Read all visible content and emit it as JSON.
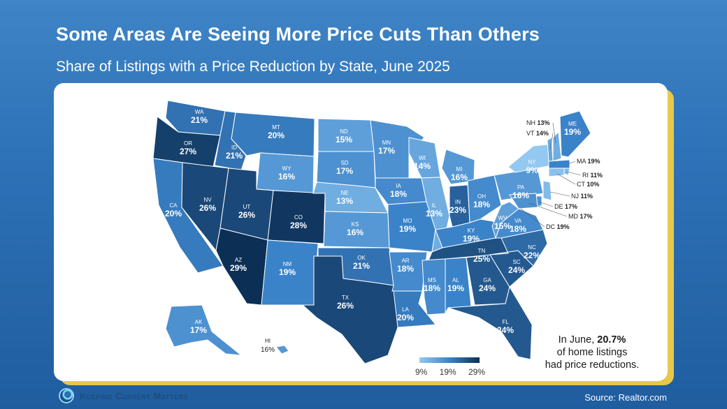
{
  "header": {
    "title": "Some Areas Are Seeing More Price Cuts Than Others",
    "subtitle": "Share of Listings with a Price Reduction by State, June 2025"
  },
  "colors": {
    "scale_low": "#93c9f1",
    "scale_mid": "#3b83c9",
    "scale_high": "#0c2f55",
    "card_shadow": "#e7c84a"
  },
  "states": [
    {
      "abbr": "WA",
      "value": "21%"
    },
    {
      "abbr": "OR",
      "value": "27%"
    },
    {
      "abbr": "CA",
      "value": "20%"
    },
    {
      "abbr": "ID",
      "value": "21%"
    },
    {
      "abbr": "NV",
      "value": "26%"
    },
    {
      "abbr": "MT",
      "value": "20%"
    },
    {
      "abbr": "WY",
      "value": "16%"
    },
    {
      "abbr": "UT",
      "value": "26%"
    },
    {
      "abbr": "CO",
      "value": "28%"
    },
    {
      "abbr": "AZ",
      "value": "29%"
    },
    {
      "abbr": "NM",
      "value": "19%"
    },
    {
      "abbr": "ND",
      "value": "15%"
    },
    {
      "abbr": "SD",
      "value": "17%"
    },
    {
      "abbr": "NE",
      "value": "13%"
    },
    {
      "abbr": "KS",
      "value": "16%"
    },
    {
      "abbr": "OK",
      "value": "21%"
    },
    {
      "abbr": "TX",
      "value": "26%"
    },
    {
      "abbr": "MN",
      "value": "17%"
    },
    {
      "abbr": "IA",
      "value": "18%"
    },
    {
      "abbr": "MO",
      "value": "19%"
    },
    {
      "abbr": "AR",
      "value": "18%"
    },
    {
      "abbr": "LA",
      "value": "20%"
    },
    {
      "abbr": "WI",
      "value": "14%"
    },
    {
      "abbr": "IL",
      "value": "13%"
    },
    {
      "abbr": "MI",
      "value": "16%"
    },
    {
      "abbr": "IN",
      "value": "23%"
    },
    {
      "abbr": "OH",
      "value": "18%"
    },
    {
      "abbr": "KY",
      "value": "19%"
    },
    {
      "abbr": "TN",
      "value": "25%"
    },
    {
      "abbr": "MS",
      "value": "18%"
    },
    {
      "abbr": "AL",
      "value": "19%"
    },
    {
      "abbr": "GA",
      "value": "24%"
    },
    {
      "abbr": "FL",
      "value": "24%"
    },
    {
      "abbr": "SC",
      "value": "24%"
    },
    {
      "abbr": "NC",
      "value": "22%"
    },
    {
      "abbr": "VA",
      "value": "18%"
    },
    {
      "abbr": "WV",
      "value": "15%"
    },
    {
      "abbr": "PA",
      "value": "16%"
    },
    {
      "abbr": "NY",
      "value": "9%"
    },
    {
      "abbr": "ME",
      "value": "19%"
    },
    {
      "abbr": "AK",
      "value": "17%"
    },
    {
      "abbr": "HI",
      "value": "16%"
    }
  ],
  "callouts": [
    {
      "abbr": "NH",
      "value": "13%"
    },
    {
      "abbr": "VT",
      "value": "14%"
    },
    {
      "abbr": "MA",
      "value": "19%"
    },
    {
      "abbr": "RI",
      "value": "11%"
    },
    {
      "abbr": "CT",
      "value": "10%"
    },
    {
      "abbr": "NJ",
      "value": "11%"
    },
    {
      "abbr": "DE",
      "value": "17%"
    },
    {
      "abbr": "MD",
      "value": "17%"
    },
    {
      "abbr": "DC",
      "value": "19%"
    }
  ],
  "legend": {
    "min": "9%",
    "mid": "19%",
    "max": "29%"
  },
  "summary": {
    "line1_prefix": "In June, ",
    "line1_value": "20.7%",
    "line2": "of home listings",
    "line3": "had price reductions."
  },
  "footer": {
    "brand": "Keeping Current Matters",
    "source": "Source: Realtor.com"
  }
}
